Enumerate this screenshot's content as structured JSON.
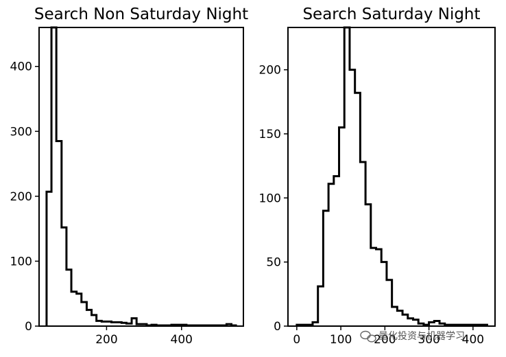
{
  "chart_data": [
    {
      "type": "histogram",
      "title": "Search Non Saturday Night",
      "xlabel": "",
      "ylabel": "",
      "xlim": [
        20,
        565
      ],
      "ylim": [
        0,
        460
      ],
      "xticks": [
        200,
        400
      ],
      "yticks": [
        0,
        100,
        200,
        300,
        400
      ],
      "grid": false,
      "histtype": "step",
      "bins": [
        {
          "x0": 40,
          "x1": 53,
          "count": 207
        },
        {
          "x0": 53,
          "x1": 66,
          "count": 460
        },
        {
          "x0": 66,
          "x1": 80,
          "count": 285
        },
        {
          "x0": 80,
          "x1": 93,
          "count": 152
        },
        {
          "x0": 93,
          "x1": 106,
          "count": 87
        },
        {
          "x0": 106,
          "x1": 120,
          "count": 53
        },
        {
          "x0": 120,
          "x1": 133,
          "count": 50
        },
        {
          "x0": 133,
          "x1": 147,
          "count": 37
        },
        {
          "x0": 147,
          "x1": 160,
          "count": 25
        },
        {
          "x0": 160,
          "x1": 173,
          "count": 17
        },
        {
          "x0": 173,
          "x1": 187,
          "count": 8
        },
        {
          "x0": 187,
          "x1": 200,
          "count": 7
        },
        {
          "x0": 200,
          "x1": 213,
          "count": 7
        },
        {
          "x0": 213,
          "x1": 227,
          "count": 6
        },
        {
          "x0": 227,
          "x1": 240,
          "count": 6
        },
        {
          "x0": 240,
          "x1": 253,
          "count": 5
        },
        {
          "x0": 253,
          "x1": 267,
          "count": 4
        },
        {
          "x0": 267,
          "x1": 280,
          "count": 12
        },
        {
          "x0": 280,
          "x1": 293,
          "count": 3
        },
        {
          "x0": 293,
          "x1": 307,
          "count": 3
        },
        {
          "x0": 307,
          "x1": 320,
          "count": 1
        },
        {
          "x0": 320,
          "x1": 333,
          "count": 2
        },
        {
          "x0": 333,
          "x1": 347,
          "count": 1
        },
        {
          "x0": 347,
          "x1": 360,
          "count": 1
        },
        {
          "x0": 360,
          "x1": 373,
          "count": 1
        },
        {
          "x0": 373,
          "x1": 387,
          "count": 2
        },
        {
          "x0": 387,
          "x1": 400,
          "count": 2
        },
        {
          "x0": 400,
          "x1": 413,
          "count": 2
        },
        {
          "x0": 413,
          "x1": 427,
          "count": 1
        },
        {
          "x0": 427,
          "x1": 520,
          "count": 1
        },
        {
          "x0": 520,
          "x1": 533,
          "count": 3
        },
        {
          "x0": 533,
          "x1": 545,
          "count": 1
        }
      ]
    },
    {
      "type": "histogram",
      "title": "Search Saturday Night",
      "xlabel": "",
      "ylabel": "",
      "xlim": [
        -20,
        450
      ],
      "ylim": [
        0,
        233
      ],
      "xticks": [
        0,
        100,
        200,
        300,
        400
      ],
      "yticks": [
        0,
        50,
        100,
        150,
        200
      ],
      "grid": false,
      "histtype": "step",
      "bins": [
        {
          "x0": 0,
          "x1": 12,
          "count": 1
        },
        {
          "x0": 12,
          "x1": 24,
          "count": 1
        },
        {
          "x0": 24,
          "x1": 36,
          "count": 1
        },
        {
          "x0": 36,
          "x1": 48,
          "count": 3
        },
        {
          "x0": 48,
          "x1": 60,
          "count": 31
        },
        {
          "x0": 60,
          "x1": 72,
          "count": 90
        },
        {
          "x0": 72,
          "x1": 84,
          "count": 111
        },
        {
          "x0": 84,
          "x1": 96,
          "count": 117
        },
        {
          "x0": 96,
          "x1": 108,
          "count": 155
        },
        {
          "x0": 108,
          "x1": 120,
          "count": 233
        },
        {
          "x0": 120,
          "x1": 132,
          "count": 200
        },
        {
          "x0": 132,
          "x1": 144,
          "count": 182
        },
        {
          "x0": 144,
          "x1": 156,
          "count": 128
        },
        {
          "x0": 156,
          "x1": 168,
          "count": 95
        },
        {
          "x0": 168,
          "x1": 180,
          "count": 61
        },
        {
          "x0": 180,
          "x1": 192,
          "count": 60
        },
        {
          "x0": 192,
          "x1": 204,
          "count": 50
        },
        {
          "x0": 204,
          "x1": 216,
          "count": 36
        },
        {
          "x0": 216,
          "x1": 228,
          "count": 15
        },
        {
          "x0": 228,
          "x1": 240,
          "count": 12
        },
        {
          "x0": 240,
          "x1": 252,
          "count": 9
        },
        {
          "x0": 252,
          "x1": 264,
          "count": 6
        },
        {
          "x0": 264,
          "x1": 276,
          "count": 5
        },
        {
          "x0": 276,
          "x1": 288,
          "count": 2
        },
        {
          "x0": 288,
          "x1": 300,
          "count": 1
        },
        {
          "x0": 300,
          "x1": 312,
          "count": 3
        },
        {
          "x0": 312,
          "x1": 324,
          "count": 4
        },
        {
          "x0": 324,
          "x1": 336,
          "count": 2
        },
        {
          "x0": 336,
          "x1": 348,
          "count": 1
        },
        {
          "x0": 348,
          "x1": 360,
          "count": 1
        },
        {
          "x0": 360,
          "x1": 372,
          "count": 1
        },
        {
          "x0": 372,
          "x1": 384,
          "count": 1
        },
        {
          "x0": 384,
          "x1": 396,
          "count": 1
        },
        {
          "x0": 396,
          "x1": 408,
          "count": 1
        },
        {
          "x0": 408,
          "x1": 420,
          "count": 1
        },
        {
          "x0": 420,
          "x1": 432,
          "count": 1
        }
      ]
    }
  ],
  "watermark": "量化投资与机器学习"
}
